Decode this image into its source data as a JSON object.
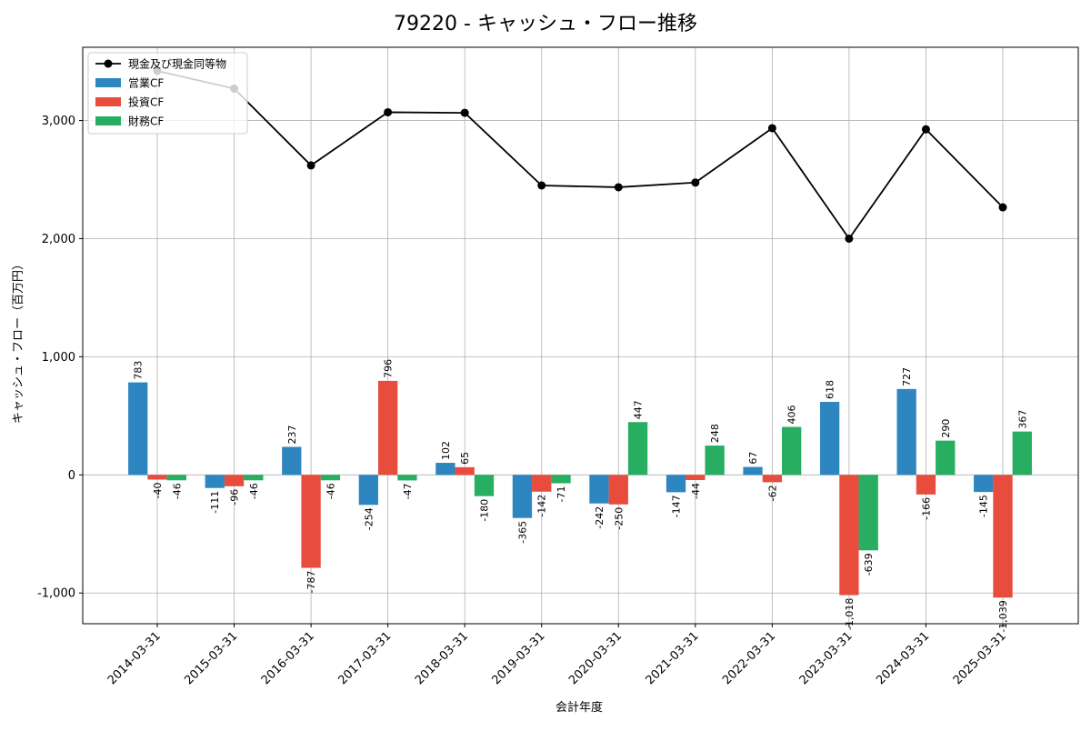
{
  "chart_data": {
    "type": "bar+line",
    "title": "79220 - キャッシュ・フロー推移",
    "xlabel": "会計年度",
    "ylabel": "キャッシュ・フロー（百万円）",
    "ylim": [
      -1260,
      3620
    ],
    "yticks": [
      -1000,
      0,
      1000,
      2000,
      3000
    ],
    "ytick_labels": [
      "-1,000",
      "0",
      "1,000",
      "2,000",
      "3,000"
    ],
    "grid": true,
    "legend_position": "top-left",
    "categories": [
      "2014-03-31",
      "2015-03-31",
      "2016-03-31",
      "2017-03-31",
      "2018-03-31",
      "2019-03-31",
      "2020-03-31",
      "2021-03-31",
      "2022-03-31",
      "2023-03-31",
      "2024-03-31",
      "2025-03-31"
    ],
    "series": [
      {
        "name": "営業CF",
        "type": "bar",
        "color": "#2e86c1",
        "values": [
          783,
          -111,
          237,
          -254,
          102,
          -365,
          -242,
          -147,
          67,
          618,
          727,
          -145
        ],
        "labels": [
          "783",
          "-111",
          "237",
          "-254",
          "102",
          "-365",
          "-242",
          "-147",
          "67",
          "618",
          "727",
          "-145"
        ]
      },
      {
        "name": "投資CF",
        "type": "bar",
        "color": "#e74c3c",
        "values": [
          -40,
          -96,
          -787,
          796,
          65,
          -142,
          -250,
          -44,
          -62,
          -1018,
          -166,
          -1039
        ],
        "labels": [
          "-40",
          "-96",
          "-787",
          "796",
          "65",
          "-142",
          "-250",
          "-44",
          "-62",
          "-1,018",
          "-166",
          "-1,039"
        ]
      },
      {
        "name": "財務CF",
        "type": "bar",
        "color": "#27ae60",
        "values": [
          -46,
          -46,
          -46,
          -47,
          -180,
          -71,
          447,
          248,
          406,
          -639,
          290,
          367
        ],
        "labels": [
          "-46",
          "-46",
          "-46",
          "-47",
          "-180",
          "-71",
          "447",
          "248",
          "406",
          "-639",
          "290",
          "367"
        ]
      },
      {
        "name": "現金及び現金同等物",
        "type": "line",
        "color": "#000000",
        "values": [
          3420,
          3270,
          2620,
          3070,
          3065,
          2450,
          2435,
          2475,
          2935,
          2000,
          2925,
          2265
        ]
      }
    ]
  }
}
